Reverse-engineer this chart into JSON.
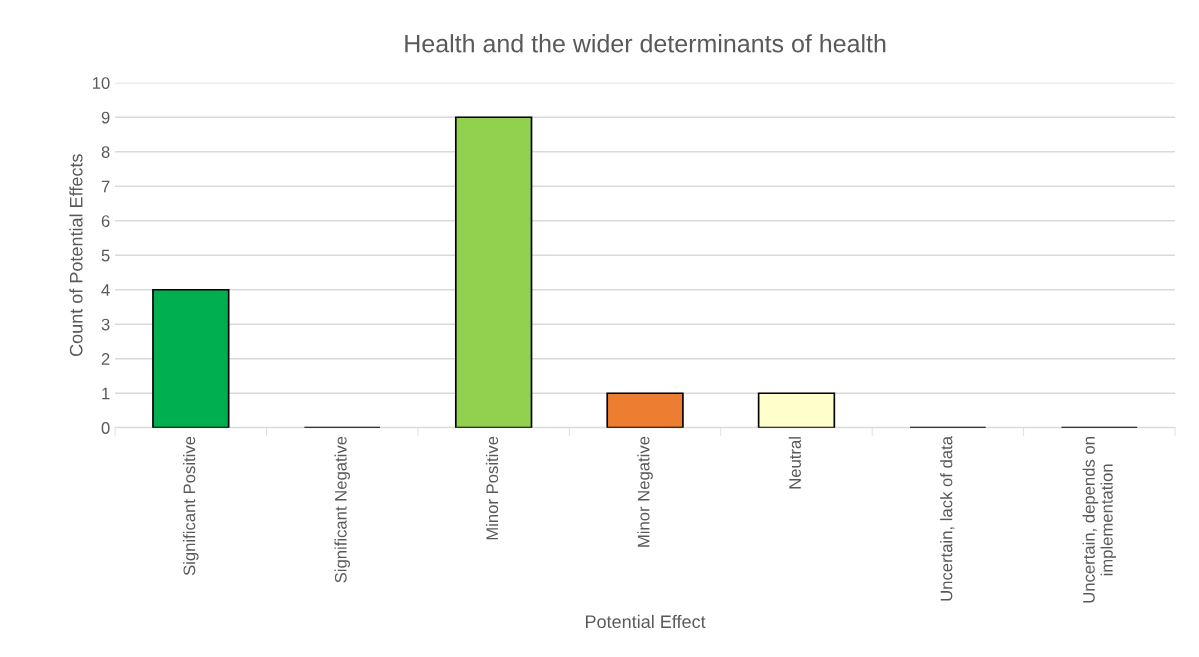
{
  "chart_data": {
    "type": "bar",
    "title": "Health and the wider determinants of health",
    "xlabel": "Potential Effect",
    "ylabel": "Count of Potential Effects",
    "categories": [
      "Significant Positive",
      "Significant Negative",
      "Minor Positive",
      "Minor Negative",
      "Neutral",
      "Uncertain, lack of data",
      "Uncertain, depends on\nimplementation"
    ],
    "values": [
      4,
      0,
      9,
      1,
      1,
      0,
      0
    ],
    "colors": [
      "#00b050",
      null,
      "#92d050",
      "#ed7d31",
      "#ffffcc",
      null,
      null
    ],
    "ylim": [
      0,
      10
    ],
    "yticks": [
      0,
      1,
      2,
      3,
      4,
      5,
      6,
      7,
      8,
      9,
      10
    ],
    "grid": "y",
    "legend": false
  }
}
